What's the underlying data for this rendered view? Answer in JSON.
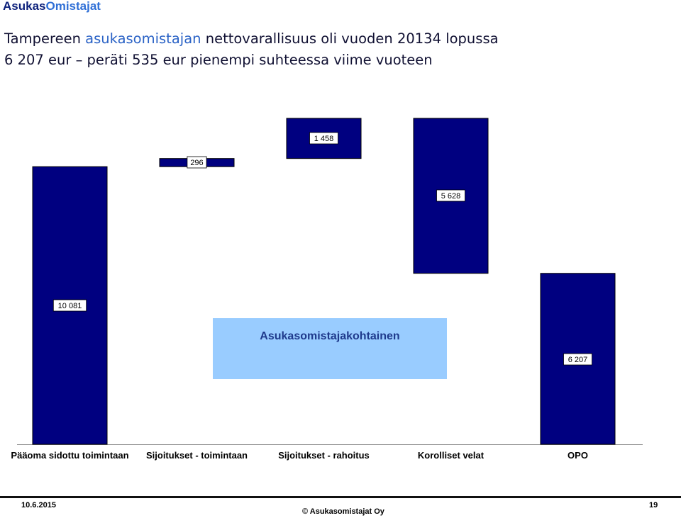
{
  "header": {
    "logo_part1": "Asukas",
    "logo_part2": "Omistajat"
  },
  "title": {
    "line1_prefix": "Tampereen ",
    "line1_highlight": "asukasomistajan",
    "line1_suffix": " nettovarallisuus oli vuoden 20134 lopussa",
    "line2": "6 207 eur – peräti 535 eur pienempi suhteessa viime vuoteen"
  },
  "chart_data": {
    "type": "bar",
    "subtype": "waterfall",
    "categories": [
      "Pääoma sidottu toimintaan",
      "Sijoitukset - toimintaan",
      "Sijoitukset - rahoitus",
      "Korolliset velat",
      "OPO"
    ],
    "bars": [
      {
        "category": "Pääoma sidottu toimintaan",
        "start": 0,
        "end": 10081,
        "label": "10 081"
      },
      {
        "category": "Sijoitukset - toimintaan",
        "start": 10081,
        "end": 10377,
        "label": "296"
      },
      {
        "category": "Sijoitukset - rahoitus",
        "start": 10377,
        "end": 11835,
        "label": "1 458"
      },
      {
        "category": "Korolliset velat",
        "start": 11835,
        "end": 6207,
        "label": "5 628"
      },
      {
        "category": "OPO",
        "start": 0,
        "end": 6207,
        "label": "6 207"
      }
    ],
    "annotation": "Asukasomistajakohtainen",
    "colors": {
      "bar": "#000080",
      "annotation_fill": "#99ccff",
      "annotation_text": "#1f3a8c"
    },
    "grid": false,
    "legend": "none"
  },
  "footer": {
    "date": "10.6.2015",
    "copyright": "© Asukasomistajat Oy",
    "page": "19"
  }
}
